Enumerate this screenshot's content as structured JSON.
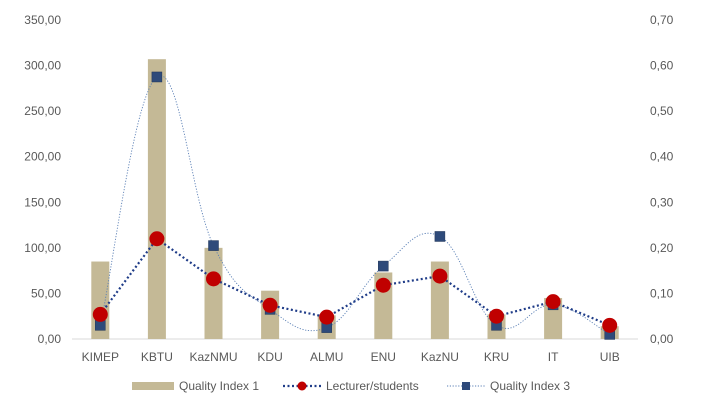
{
  "chart_data": {
    "type": "bar",
    "categories": [
      "KIMEP",
      "KBTU",
      "KazNMU",
      "KDU",
      "ALMU",
      "ENU",
      "KazNU",
      "KRU",
      "IT",
      "UIB"
    ],
    "y_left": {
      "ylim": [
        0,
        350
      ],
      "ticks": [
        "0,00",
        "50,00",
        "100,00",
        "150,00",
        "200,00",
        "250,00",
        "300,00",
        "350,00"
      ]
    },
    "y_right": {
      "ylim": [
        0,
        0.7
      ],
      "ticks": [
        "0,00",
        "0,10",
        "0,20",
        "0,30",
        "0,40",
        "0,50",
        "0,60",
        "0,70"
      ]
    },
    "series": [
      {
        "name": "Quality Index 1",
        "kind": "bar",
        "axis": "left",
        "color": "#c4b996",
        "values": [
          85,
          307,
          100,
          53,
          26,
          73,
          85,
          27,
          45,
          14
        ]
      },
      {
        "name": "Lecturer/students",
        "kind": "line",
        "axis": "left",
        "color": "#c00000",
        "line_color": "#1f3c88",
        "line_style": "dotted",
        "marker": "circle",
        "values": [
          27,
          110,
          66,
          37,
          24,
          59,
          69,
          25,
          41,
          15
        ]
      },
      {
        "name": "Quality Index 3",
        "kind": "line",
        "axis": "right",
        "color": "#2e4a7a",
        "line_color": "#5a7fb5",
        "line_style": "thin-dotted-smooth",
        "marker": "square",
        "values": [
          0.03,
          0.575,
          0.205,
          0.065,
          0.025,
          0.16,
          0.225,
          0.03,
          0.075,
          0.01
        ]
      }
    ],
    "legend": "bottom",
    "grid": false
  }
}
